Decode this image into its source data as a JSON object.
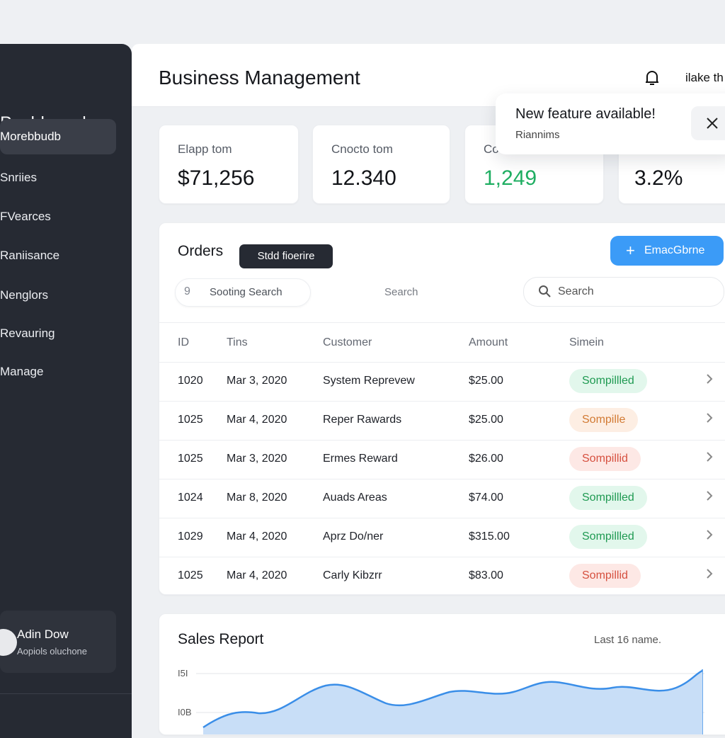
{
  "sidebar": {
    "brand": "Pashboard",
    "items": [
      {
        "label": "Morebbudb"
      },
      {
        "label": "Snriies"
      },
      {
        "label": "FVearces"
      },
      {
        "label": "Raniisance"
      },
      {
        "label": "Nenglors"
      },
      {
        "label": "Revauring"
      },
      {
        "label": "Manage"
      }
    ],
    "user": {
      "name": "Adin Dow",
      "role": "Aopiols oluchone"
    }
  },
  "header": {
    "title": "Business Management",
    "user_text": "ilake th",
    "icons": [
      "bell-icon"
    ]
  },
  "toast": {
    "title": "New feature available!",
    "subtitle": "Riannims",
    "icon": "close-icon"
  },
  "stats": [
    {
      "label": "Elapp tom",
      "value": "$71,256"
    },
    {
      "label": "Cnocto tom",
      "value": "12.340"
    },
    {
      "label": "Co",
      "value": "1,249"
    },
    {
      "label": "",
      "value": "3.2%"
    }
  ],
  "orders": {
    "title": "Orders",
    "tooltip": "Stdd fioerire",
    "primary_button": "EmacGbrne",
    "chip_label": "Sooting Search",
    "chip_icon_text": "9",
    "middle_label": "Search",
    "search_placeholder": "Search",
    "columns": [
      "ID",
      "Tins",
      "Customer",
      "Amount",
      "Simein"
    ],
    "rows": [
      {
        "id": "1020",
        "date": "Mar 3, 2020",
        "customer": "System Reprevew",
        "amount": "$25.00",
        "status": "Sompillled",
        "tone": "green"
      },
      {
        "id": "1025",
        "date": "Mar 4, 2020",
        "customer": "Reper Rawards",
        "amount": "$25.00",
        "status": "Sompille",
        "tone": "orange"
      },
      {
        "id": "1025",
        "date": "Mar 3, 2020",
        "customer": "Ermes Reward",
        "amount": "$26.00",
        "status": "Sompillid",
        "tone": "red"
      },
      {
        "id": "1024",
        "date": "Mar 8, 2020",
        "customer": "Auads Areas",
        "amount": "$74.00",
        "status": "Sompillled",
        "tone": "green"
      },
      {
        "id": "1029",
        "date": "Mar 4, 2020",
        "customer": "Aprz Do/ner",
        "amount": "$315.00",
        "status": "Sompillled",
        "tone": "green"
      },
      {
        "id": "1025",
        "date": "Mar 4, 2020",
        "customer": "Carly Kibzrr",
        "amount": "$83.00",
        "status": "Sompillid",
        "tone": "red"
      }
    ]
  },
  "sales": {
    "title": "Sales Report",
    "range": "Last 16 name.",
    "y_labels": [
      "I5I",
      "I0B"
    ]
  },
  "colors": {
    "accent": "#3b9bf7",
    "sidebar": "#262a33",
    "positive": "#1fae62",
    "area_fill": "#c8def7",
    "area_line": "#3a8ee8"
  }
}
